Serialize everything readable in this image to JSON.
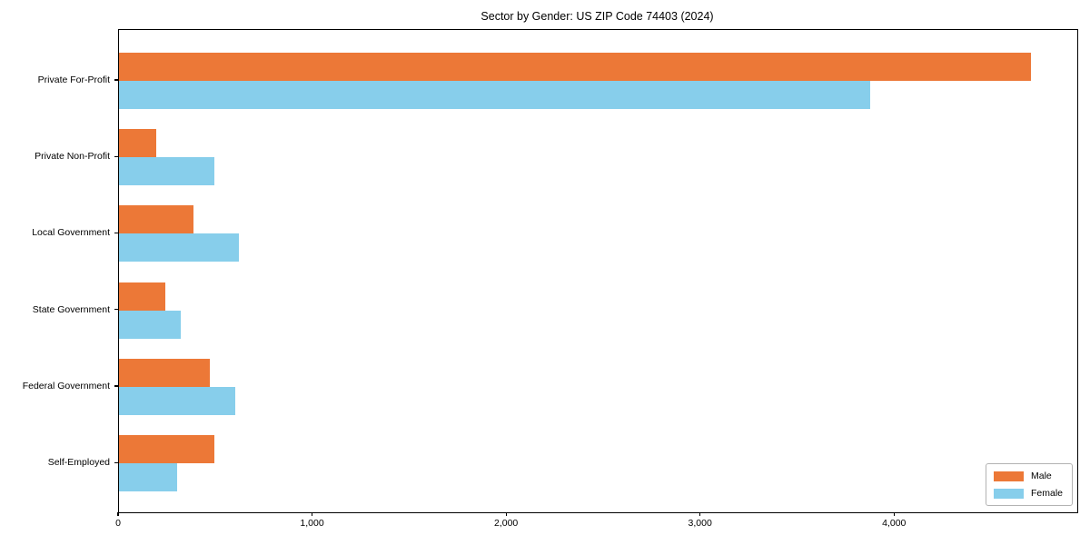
{
  "title": "Sector by Gender: US ZIP Code 74403 (2024)",
  "colors": {
    "male": "#ec7837",
    "female": "#87ceeb",
    "axis": "#000000",
    "legend_border": "#b3b3b3",
    "background": "#ffffff"
  },
  "legend": {
    "position": "lower right",
    "items": [
      {
        "label": "Male",
        "color": "#ec7837"
      },
      {
        "label": "Female",
        "color": "#87ceeb"
      }
    ]
  },
  "chart_data": {
    "type": "bar",
    "orientation": "horizontal",
    "title": "Sector by Gender: US ZIP Code 74403 (2024)",
    "categories": [
      "Private For-Profit",
      "Private Non-Profit",
      "Local Government",
      "State Government",
      "Federal Government",
      "Self-Employed"
    ],
    "series": [
      {
        "name": "Male",
        "color": "#ec7837",
        "values": [
          4700,
          190,
          385,
          240,
          470,
          490
        ]
      },
      {
        "name": "Female",
        "color": "#87ceeb",
        "values": [
          3870,
          490,
          620,
          320,
          600,
          300
        ]
      }
    ],
    "xlabel": "",
    "ylabel": "",
    "xlim": [
      0,
      4940
    ],
    "xticks": [
      0,
      1000,
      2000,
      3000,
      4000
    ],
    "xtick_labels": [
      "0",
      "1,000",
      "2,000",
      "3,000",
      "4,000"
    ],
    "grid": false,
    "legend_position": "lower right"
  }
}
